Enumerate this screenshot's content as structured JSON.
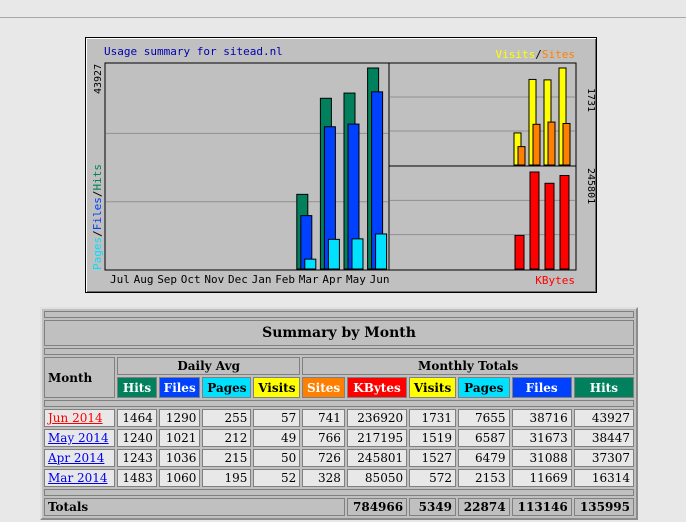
{
  "chart_data": [
    {
      "type": "bar",
      "title": "Usage summary for sitead.nl",
      "categories": [
        "Jul",
        "Aug",
        "Sep",
        "Oct",
        "Nov",
        "Dec",
        "Jan",
        "Feb",
        "Mar",
        "Apr",
        "May",
        "Jun"
      ],
      "series": [
        {
          "name": "Hits",
          "color": "#00805c",
          "values": [
            0,
            0,
            0,
            0,
            0,
            0,
            0,
            0,
            16314,
            37307,
            38447,
            43927
          ]
        },
        {
          "name": "Files",
          "color": "#0040ff",
          "values": [
            0,
            0,
            0,
            0,
            0,
            0,
            0,
            0,
            11669,
            31088,
            31673,
            38716
          ]
        },
        {
          "name": "Pages",
          "color": "#00e0ff",
          "values": [
            0,
            0,
            0,
            0,
            0,
            0,
            0,
            0,
            2153,
            6479,
            6587,
            7655
          ]
        }
      ],
      "ylabel_parts": [
        "Pages",
        "/",
        "Files",
        "/",
        "Hits"
      ],
      "ymax_label": "43927",
      "ylim": [
        0,
        43927
      ]
    },
    {
      "type": "bar",
      "categories": [
        "Mar",
        "Apr",
        "May",
        "Jun"
      ],
      "legend_parts": [
        "Visits",
        "/",
        "Sites"
      ],
      "series": [
        {
          "name": "Visits",
          "color": "#ffff00",
          "values": [
            572,
            1527,
            1519,
            1731
          ]
        },
        {
          "name": "Sites",
          "color": "#ff8000",
          "values": [
            328,
            726,
            766,
            741
          ]
        }
      ],
      "ymax_label": "1731",
      "ylim": [
        0,
        1731
      ]
    },
    {
      "type": "bar",
      "categories": [
        "Mar",
        "Apr",
        "May",
        "Jun"
      ],
      "xlabel": "KBytes",
      "series": [
        {
          "name": "KBytes",
          "color": "#ff0000",
          "values": [
            85050,
            245801,
            217195,
            236920
          ]
        }
      ],
      "ymax_label": "245801",
      "ylim": [
        0,
        245801
      ]
    }
  ],
  "table": {
    "title": "Summary by Month",
    "month_header": "Month",
    "daily_avg_header": "Daily Avg",
    "monthly_totals_header": "Monthly Totals",
    "daily_cols": [
      {
        "label": "Hits",
        "color": "#00805c",
        "text": "#ffffff"
      },
      {
        "label": "Files",
        "color": "#0040ff",
        "text": "#ffffff"
      },
      {
        "label": "Pages",
        "color": "#00e0ff",
        "text": "#000000"
      },
      {
        "label": "Visits",
        "color": "#ffff00",
        "text": "#000000"
      }
    ],
    "total_cols": [
      {
        "label": "Sites",
        "color": "#ff8000",
        "text": "#ffffff"
      },
      {
        "label": "KBytes",
        "color": "#ff0000",
        "text": "#ffffff"
      },
      {
        "label": "Visits",
        "color": "#ffff00",
        "text": "#000000"
      },
      {
        "label": "Pages",
        "color": "#00e0ff",
        "text": "#000000"
      },
      {
        "label": "Files",
        "color": "#0040ff",
        "text": "#ffffff"
      },
      {
        "label": "Hits",
        "color": "#00805c",
        "text": "#ffffff"
      }
    ],
    "rows": [
      {
        "month": "Jun 2014",
        "link_color": "#ff0000",
        "values": [
          "1464",
          "1290",
          "255",
          "57",
          "741",
          "236920",
          "1731",
          "7655",
          "38716",
          "43927"
        ]
      },
      {
        "month": "May 2014",
        "link_color": "#0000ee",
        "values": [
          "1240",
          "1021",
          "212",
          "49",
          "766",
          "217195",
          "1519",
          "6587",
          "31673",
          "38447"
        ]
      },
      {
        "month": "Apr 2014",
        "link_color": "#0000ee",
        "values": [
          "1243",
          "1036",
          "215",
          "50",
          "726",
          "245801",
          "1527",
          "6479",
          "31088",
          "37307"
        ]
      },
      {
        "month": "Mar 2014",
        "link_color": "#0000ee",
        "values": [
          "1483",
          "1060",
          "195",
          "52",
          "328",
          "85050",
          "572",
          "2153",
          "11669",
          "16314"
        ]
      }
    ],
    "totals_label": "Totals",
    "totals": [
      "784966",
      "5349",
      "22874",
      "113146",
      "135995"
    ]
  }
}
